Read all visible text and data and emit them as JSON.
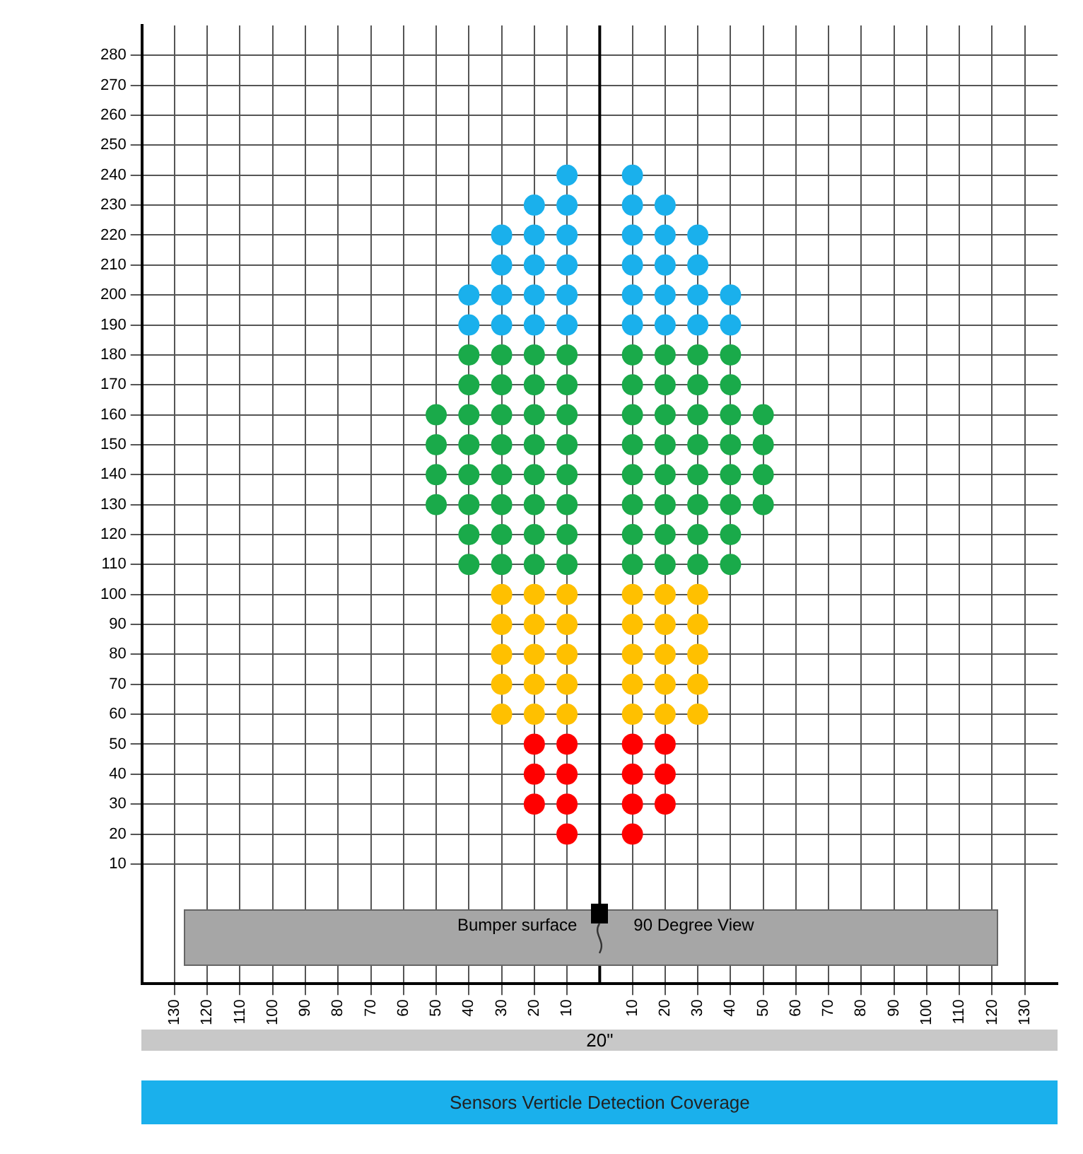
{
  "chart_data": {
    "type": "scatter",
    "title": "Sensors Verticle Detection Coverage",
    "annotations": [
      "Bumper surface",
      "90 Degree View",
      "20\""
    ],
    "xlim": [
      -140,
      140
    ],
    "xticks": [
      {
        "value": -130,
        "label": "130"
      },
      {
        "value": -120,
        "label": "120"
      },
      {
        "value": -110,
        "label": "110"
      },
      {
        "value": -100,
        "label": "100"
      },
      {
        "value": -90,
        "label": "90"
      },
      {
        "value": -80,
        "label": "80"
      },
      {
        "value": -70,
        "label": "70"
      },
      {
        "value": -60,
        "label": "60"
      },
      {
        "value": -50,
        "label": "50"
      },
      {
        "value": -40,
        "label": "40"
      },
      {
        "value": -30,
        "label": "30"
      },
      {
        "value": -20,
        "label": "20"
      },
      {
        "value": -10,
        "label": "10"
      },
      10,
      20,
      30,
      40,
      50,
      60,
      70,
      80,
      90,
      100,
      110,
      120,
      130
    ],
    "ylim": [
      -30,
      290
    ],
    "yticks": [
      10,
      20,
      30,
      40,
      50,
      60,
      70,
      80,
      90,
      100,
      110,
      120,
      130,
      140,
      150,
      160,
      170,
      180,
      190,
      200,
      210,
      220,
      230,
      240,
      250,
      260,
      270,
      280
    ],
    "grid": true,
    "legend": false,
    "marker": "circle",
    "ref_lines": [
      {
        "axis": "x",
        "value": 0,
        "color": "#000000"
      }
    ],
    "series": [
      {
        "color": "#1ab0ec",
        "x": [
          -10,
          10,
          -20,
          -10,
          10,
          20,
          -30,
          -20,
          -10,
          10,
          20,
          30,
          -30,
          -20,
          -10,
          10,
          20,
          30,
          -40,
          -30,
          -20,
          -10,
          10,
          20,
          30,
          40,
          -40,
          -30,
          -20,
          -10,
          10,
          20,
          30,
          40
        ],
        "values": [
          240,
          240,
          230,
          230,
          230,
          230,
          220,
          220,
          220,
          220,
          220,
          220,
          210,
          210,
          210,
          210,
          210,
          210,
          200,
          200,
          200,
          200,
          200,
          200,
          200,
          200,
          190,
          190,
          190,
          190,
          190,
          190,
          190,
          190
        ]
      },
      {
        "color": "#1aaa4a",
        "x": [
          -40,
          -30,
          -20,
          -10,
          10,
          20,
          30,
          40,
          -40,
          -30,
          -20,
          -10,
          10,
          20,
          30,
          40,
          -50,
          -40,
          -30,
          -20,
          -10,
          10,
          20,
          30,
          40,
          50,
          -50,
          -40,
          -30,
          -20,
          -10,
          10,
          20,
          30,
          40,
          50,
          -50,
          -40,
          -30,
          -20,
          -10,
          10,
          20,
          30,
          40,
          50,
          -50,
          -40,
          -30,
          -20,
          -10,
          10,
          20,
          30,
          40,
          50,
          -40,
          -30,
          -20,
          -10,
          10,
          20,
          30,
          40,
          -40,
          -30,
          -20,
          -10,
          10,
          20,
          30,
          40
        ],
        "values": [
          180,
          180,
          180,
          180,
          180,
          180,
          180,
          180,
          170,
          170,
          170,
          170,
          170,
          170,
          170,
          170,
          160,
          160,
          160,
          160,
          160,
          160,
          160,
          160,
          160,
          160,
          150,
          150,
          150,
          150,
          150,
          150,
          150,
          150,
          150,
          150,
          140,
          140,
          140,
          140,
          140,
          140,
          140,
          140,
          140,
          140,
          130,
          130,
          130,
          130,
          130,
          130,
          130,
          130,
          130,
          130,
          120,
          120,
          120,
          120,
          120,
          120,
          120,
          120,
          110,
          110,
          110,
          110,
          110,
          110,
          110,
          110
        ]
      },
      {
        "color": "#ffc000",
        "x": [
          -30,
          -20,
          -10,
          10,
          20,
          30,
          -30,
          -20,
          -10,
          10,
          20,
          30,
          -30,
          -20,
          -10,
          10,
          20,
          30,
          -30,
          -20,
          -10,
          10,
          20,
          30,
          -30,
          -20,
          -10,
          10,
          20,
          30
        ],
        "values": [
          100,
          100,
          100,
          100,
          100,
          100,
          90,
          90,
          90,
          90,
          90,
          90,
          80,
          80,
          80,
          80,
          80,
          80,
          70,
          70,
          70,
          70,
          70,
          70,
          60,
          60,
          60,
          60,
          60,
          60
        ]
      },
      {
        "color": "#ff0000",
        "x": [
          -20,
          -10,
          10,
          20,
          -20,
          -10,
          10,
          20,
          -20,
          -10,
          10,
          20,
          -10,
          10
        ],
        "values": [
          50,
          50,
          50,
          50,
          40,
          40,
          40,
          40,
          30,
          30,
          30,
          30,
          20,
          20
        ]
      }
    ]
  }
}
